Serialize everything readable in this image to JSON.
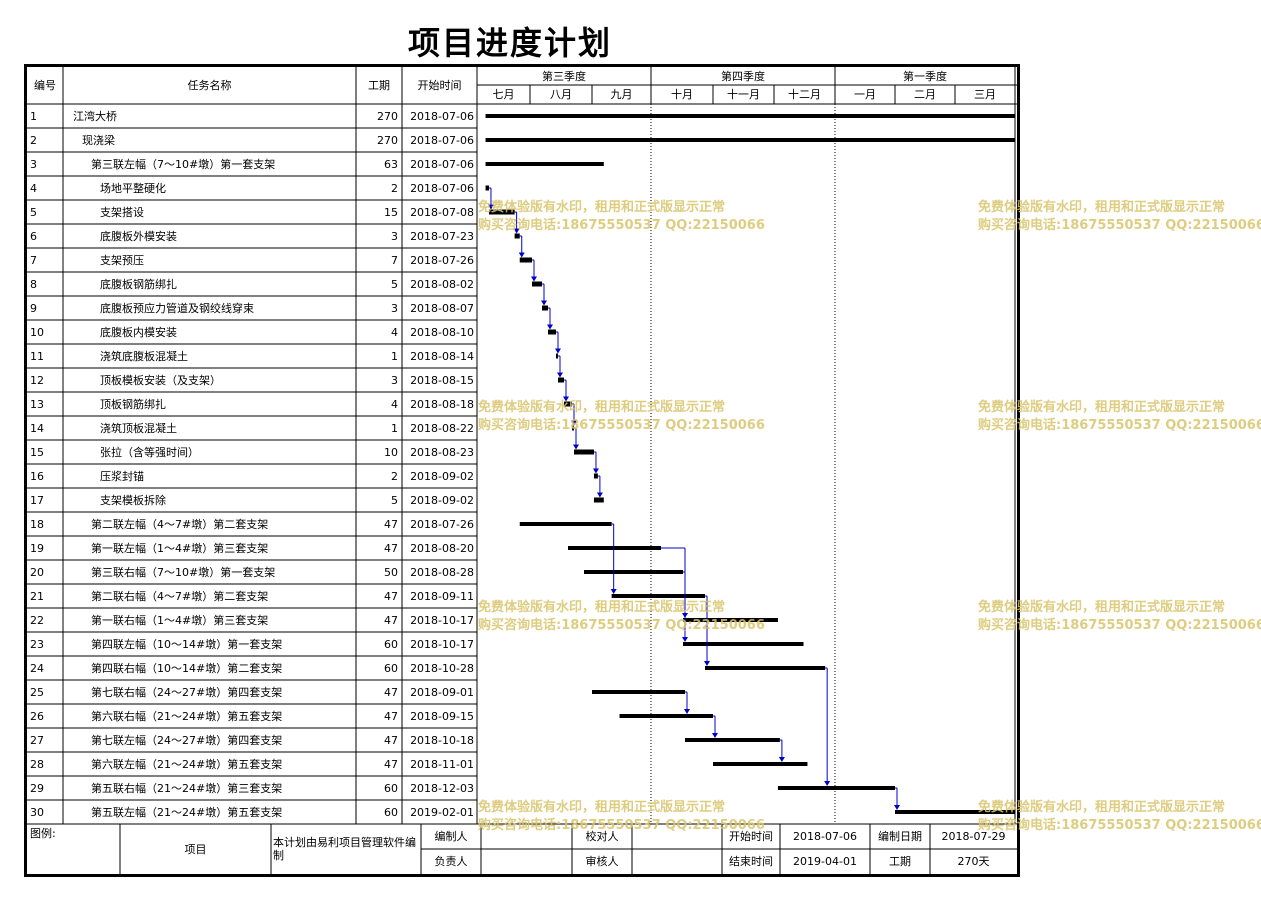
{
  "title": "项目进度计划",
  "headers": {
    "no": "编号",
    "name": "任务名称",
    "duration": "工期",
    "start": "开始时间"
  },
  "timescale": {
    "quarters": [
      "第三季度",
      "第四季度",
      "第一季度"
    ],
    "months": [
      "七月",
      "八月",
      "九月",
      "十月",
      "十一月",
      "十二月",
      "一月",
      "二月",
      "三月"
    ]
  },
  "timeline": {
    "start": "2018-07-01",
    "end": "2019-04-01"
  },
  "tasks": [
    {
      "no": "1",
      "name": "江湾大桥",
      "duration": "270",
      "start": "2018-07-06",
      "indent": 0,
      "summary": true
    },
    {
      "no": "2",
      "name": "现浇梁",
      "duration": "270",
      "start": "2018-07-06",
      "indent": 1,
      "summary": true
    },
    {
      "no": "3",
      "name": "第三联左幅（7～10#墩）第一套支架",
      "duration": "63",
      "start": "2018-07-06",
      "indent": 2,
      "summary": true
    },
    {
      "no": "4",
      "name": "场地平整硬化",
      "duration": "2",
      "start": "2018-07-06",
      "indent": 3
    },
    {
      "no": "5",
      "name": "支架搭设",
      "duration": "15",
      "start": "2018-07-08",
      "indent": 3
    },
    {
      "no": "6",
      "name": "底腹板外模安装",
      "duration": "3",
      "start": "2018-07-23",
      "indent": 3
    },
    {
      "no": "7",
      "name": "支架预压",
      "duration": "7",
      "start": "2018-07-26",
      "indent": 3
    },
    {
      "no": "8",
      "name": "底腹板钢筋绑扎",
      "duration": "5",
      "start": "2018-08-02",
      "indent": 3
    },
    {
      "no": "9",
      "name": "底腹板预应力管道及钢绞线穿束",
      "duration": "3",
      "start": "2018-08-07",
      "indent": 3
    },
    {
      "no": "10",
      "name": "底腹板内模安装",
      "duration": "4",
      "start": "2018-08-10",
      "indent": 3
    },
    {
      "no": "11",
      "name": "浇筑底腹板混凝土",
      "duration": "1",
      "start": "2018-08-14",
      "indent": 3
    },
    {
      "no": "12",
      "name": "顶板模板安装（及支架）",
      "duration": "3",
      "start": "2018-08-15",
      "indent": 3
    },
    {
      "no": "13",
      "name": "顶板钢筋绑扎",
      "duration": "4",
      "start": "2018-08-18",
      "indent": 3
    },
    {
      "no": "14",
      "name": "浇筑顶板混凝土",
      "duration": "1",
      "start": "2018-08-22",
      "indent": 3
    },
    {
      "no": "15",
      "name": "张拉（含等强时间）",
      "duration": "10",
      "start": "2018-08-23",
      "indent": 3
    },
    {
      "no": "16",
      "name": "压浆封锚",
      "duration": "2",
      "start": "2018-09-02",
      "indent": 3
    },
    {
      "no": "17",
      "name": "支架模板拆除",
      "duration": "5",
      "start": "2018-09-02",
      "indent": 3
    },
    {
      "no": "18",
      "name": "第二联左幅（4～7#墩）第二套支架",
      "duration": "47",
      "start": "2018-07-26",
      "indent": 2,
      "summary": true
    },
    {
      "no": "19",
      "name": "第一联左幅（1～4#墩）第三套支架",
      "duration": "47",
      "start": "2018-08-20",
      "indent": 2,
      "summary": true
    },
    {
      "no": "20",
      "name": "第三联右幅（7～10#墩）第一套支架",
      "duration": "50",
      "start": "2018-08-28",
      "indent": 2,
      "summary": true
    },
    {
      "no": "21",
      "name": "第二联右幅（4～7#墩）第二套支架",
      "duration": "47",
      "start": "2018-09-11",
      "indent": 2,
      "summary": true
    },
    {
      "no": "22",
      "name": "第一联右幅（1～4#墩）第三套支架",
      "duration": "47",
      "start": "2018-10-17",
      "indent": 2,
      "summary": true
    },
    {
      "no": "23",
      "name": "第四联左幅（10～14#墩）第一套支架",
      "duration": "60",
      "start": "2018-10-17",
      "indent": 2,
      "summary": true
    },
    {
      "no": "24",
      "name": "第四联右幅（10～14#墩）第二套支架",
      "duration": "60",
      "start": "2018-10-28",
      "indent": 2,
      "summary": true
    },
    {
      "no": "25",
      "name": "第七联右幅（24～27#墩）第四套支架",
      "duration": "47",
      "start": "2018-09-01",
      "indent": 2,
      "summary": true
    },
    {
      "no": "26",
      "name": "第六联右幅（21～24#墩）第五套支架",
      "duration": "47",
      "start": "2018-09-15",
      "indent": 2,
      "summary": true
    },
    {
      "no": "27",
      "name": "第七联左幅（24～27#墩）第四套支架",
      "duration": "47",
      "start": "2018-10-18",
      "indent": 2,
      "summary": true
    },
    {
      "no": "28",
      "name": "第六联左幅（21～24#墩）第五套支架",
      "duration": "47",
      "start": "2018-11-01",
      "indent": 2,
      "summary": true
    },
    {
      "no": "29",
      "name": "第五联右幅（21～24#墩）第三套支架",
      "duration": "60",
      "start": "2018-12-03",
      "indent": 2,
      "summary": true
    },
    {
      "no": "30",
      "name": "第五联左幅（21～24#墩）第五套支架",
      "duration": "60",
      "start": "2019-02-01",
      "indent": 2,
      "summary": true
    }
  ],
  "dependencies": [
    [
      4,
      5
    ],
    [
      5,
      6
    ],
    [
      6,
      7
    ],
    [
      7,
      8
    ],
    [
      8,
      9
    ],
    [
      9,
      10
    ],
    [
      10,
      11
    ],
    [
      11,
      12
    ],
    [
      12,
      13
    ],
    [
      13,
      14
    ],
    [
      14,
      15
    ],
    [
      15,
      16
    ],
    [
      16,
      17
    ],
    [
      18,
      21
    ],
    [
      19,
      22
    ],
    [
      20,
      23
    ],
    [
      21,
      24
    ],
    [
      25,
      26
    ],
    [
      26,
      27
    ],
    [
      27,
      28
    ],
    [
      24,
      29
    ],
    [
      29,
      30
    ]
  ],
  "footer": {
    "legend_label": "图例:",
    "project_label": "项目",
    "software_note": "本计划由易利项目管理软件编制",
    "editor_label": "编制人",
    "checker_label": "校对人",
    "owner_label": "负责人",
    "reviewer_label": "审核人",
    "start_label": "开始时间",
    "start_value": "2018-07-06",
    "end_label": "结束时间",
    "end_value": "2019-04-01",
    "date_label": "编制日期",
    "date_value": "2018-07-29",
    "duration_label": "工期",
    "duration_value": "270天"
  },
  "watermark": {
    "line1": "免费体验版有水印，租用和正式版显示正常",
    "line2": "购买咨询电话:18675550537 QQ:22150066"
  },
  "colors": {
    "bar": "#000000",
    "link": "#0000cc",
    "watermark": "#d9c46a"
  }
}
